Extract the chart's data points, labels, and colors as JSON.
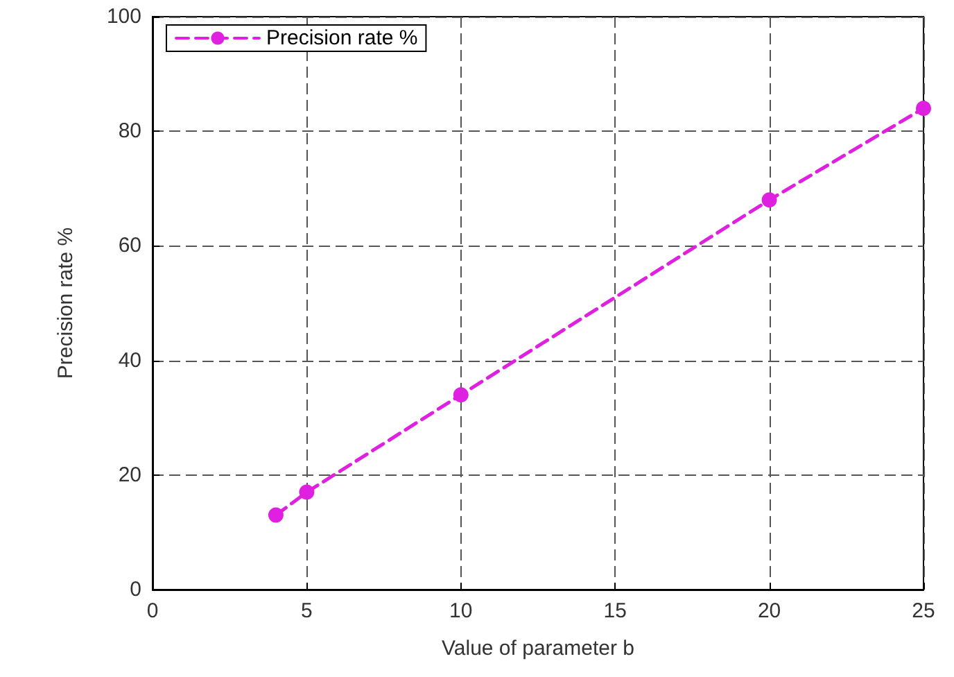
{
  "chart_data": {
    "type": "line",
    "xlabel": "Value of parameter b",
    "ylabel": "Precision rate %",
    "x": [
      4,
      5,
      10,
      20,
      25
    ],
    "series": [
      {
        "name": "Precision rate %",
        "color": "#e020e0",
        "values": [
          13,
          17,
          34,
          68,
          84
        ]
      }
    ],
    "xlim": [
      0,
      25
    ],
    "xticks": [
      0,
      5,
      10,
      15,
      20,
      25
    ],
    "ylim": [
      0,
      100
    ],
    "yticks": [
      0,
      20,
      40,
      60,
      80,
      100
    ],
    "grid": true,
    "legend": "top left",
    "marker": "circle",
    "line_style": "dashed"
  }
}
